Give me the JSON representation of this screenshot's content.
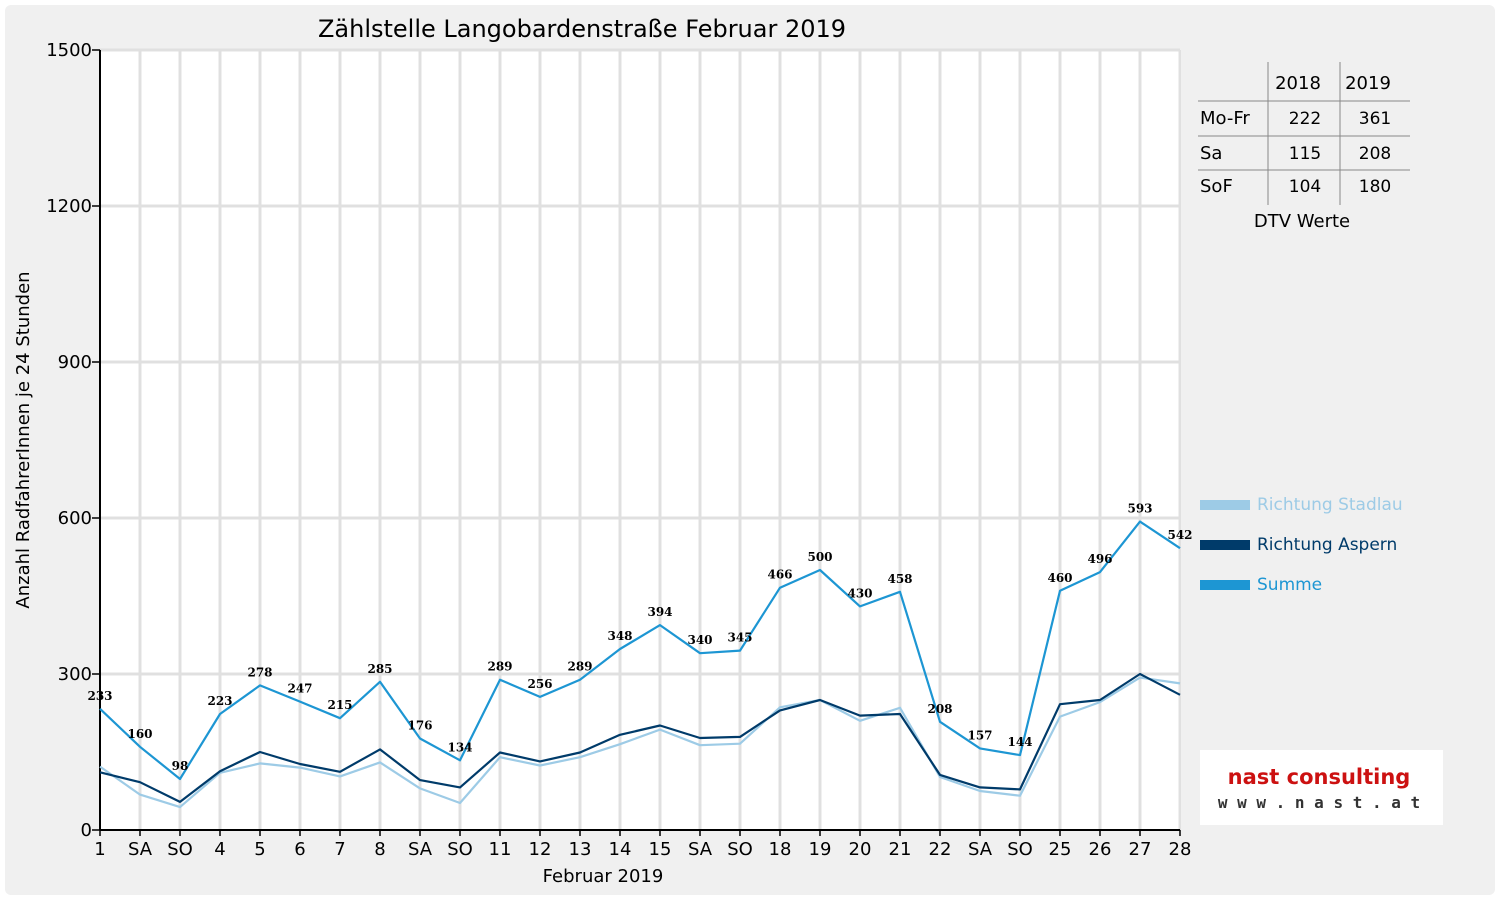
{
  "chart_data": {
    "type": "line",
    "title": "Zählstelle Langobardenstraße Februar 2019",
    "xlabel": "Februar 2019",
    "ylabel": "Anzahl RadfahrerInnen je 24 Stunden",
    "ylim": [
      0,
      1500
    ],
    "yticks": [
      "0",
      "300",
      "600",
      "900",
      "1200",
      "1500"
    ],
    "categories": [
      "1",
      "SA",
      "SO",
      "4",
      "5",
      "6",
      "7",
      "8",
      "SA",
      "SO",
      "11",
      "12",
      "13",
      "14",
      "15",
      "SA",
      "SO",
      "18",
      "19",
      "20",
      "21",
      "22",
      "SA",
      "SO",
      "25",
      "26",
      "27",
      "28"
    ],
    "category_colors": [
      "#000000",
      "#000000",
      "#ff0000",
      "#000000",
      "#000000",
      "#000000",
      "#000000",
      "#000000",
      "#000000",
      "#ff0000",
      "#000000",
      "#000000",
      "#000000",
      "#000000",
      "#000000",
      "#000000",
      "#ff0000",
      "#000000",
      "#000000",
      "#000000",
      "#000000",
      "#000000",
      "#000000",
      "#ff0000",
      "#000000",
      "#000000",
      "#000000",
      "#000000"
    ],
    "grid": true,
    "legend_position": "right",
    "series": [
      {
        "name": "Richtung Stadlau",
        "color": "#9dcbe6",
        "values": [
          122,
          68,
          44,
          110,
          128,
          120,
          103,
          130,
          80,
          52,
          140,
          124,
          140,
          165,
          193,
          163,
          166,
          236,
          250,
          210,
          235,
          102,
          75,
          66,
          218,
          246,
          293,
          282
        ]
      },
      {
        "name": "Richtung Aspern",
        "color": "#003b6a",
        "values": [
          111,
          92,
          54,
          113,
          150,
          127,
          112,
          155,
          96,
          82,
          149,
          132,
          149,
          183,
          201,
          177,
          179,
          230,
          250,
          220,
          223,
          106,
          82,
          78,
          242,
          250,
          300,
          260
        ]
      },
      {
        "name": "Summe",
        "color": "#1d96d3",
        "values": [
          233,
          160,
          98,
          223,
          278,
          247,
          215,
          285,
          176,
          134,
          289,
          256,
          289,
          348,
          394,
          340,
          345,
          466,
          500,
          430,
          458,
          208,
          157,
          144,
          460,
          496,
          593,
          542
        ],
        "data_labels": [
          "233",
          "160",
          "98",
          "223",
          "278",
          "247",
          "215",
          "285",
          "176",
          "134",
          "289",
          "256",
          "289",
          "348",
          "394",
          "340",
          "345",
          "466",
          "500",
          "430",
          "458",
          "208",
          "157",
          "144",
          "460",
          "496",
          "593",
          "542"
        ]
      }
    ]
  },
  "dtv_table": {
    "col_headers": [
      "2018",
      "2019"
    ],
    "rows": [
      {
        "label": "Mo-Fr",
        "v2018": "222",
        "v2019": "361"
      },
      {
        "label": "Sa",
        "v2018": "115",
        "v2019": "208"
      },
      {
        "label": "SoF",
        "v2018": "104",
        "v2019": "180"
      }
    ],
    "caption": "DTV Werte"
  },
  "logo": {
    "name": "nast consulting",
    "url": "w w w . n a s t . a t",
    "name_color": "#cc1111",
    "url_color": "#333333"
  }
}
